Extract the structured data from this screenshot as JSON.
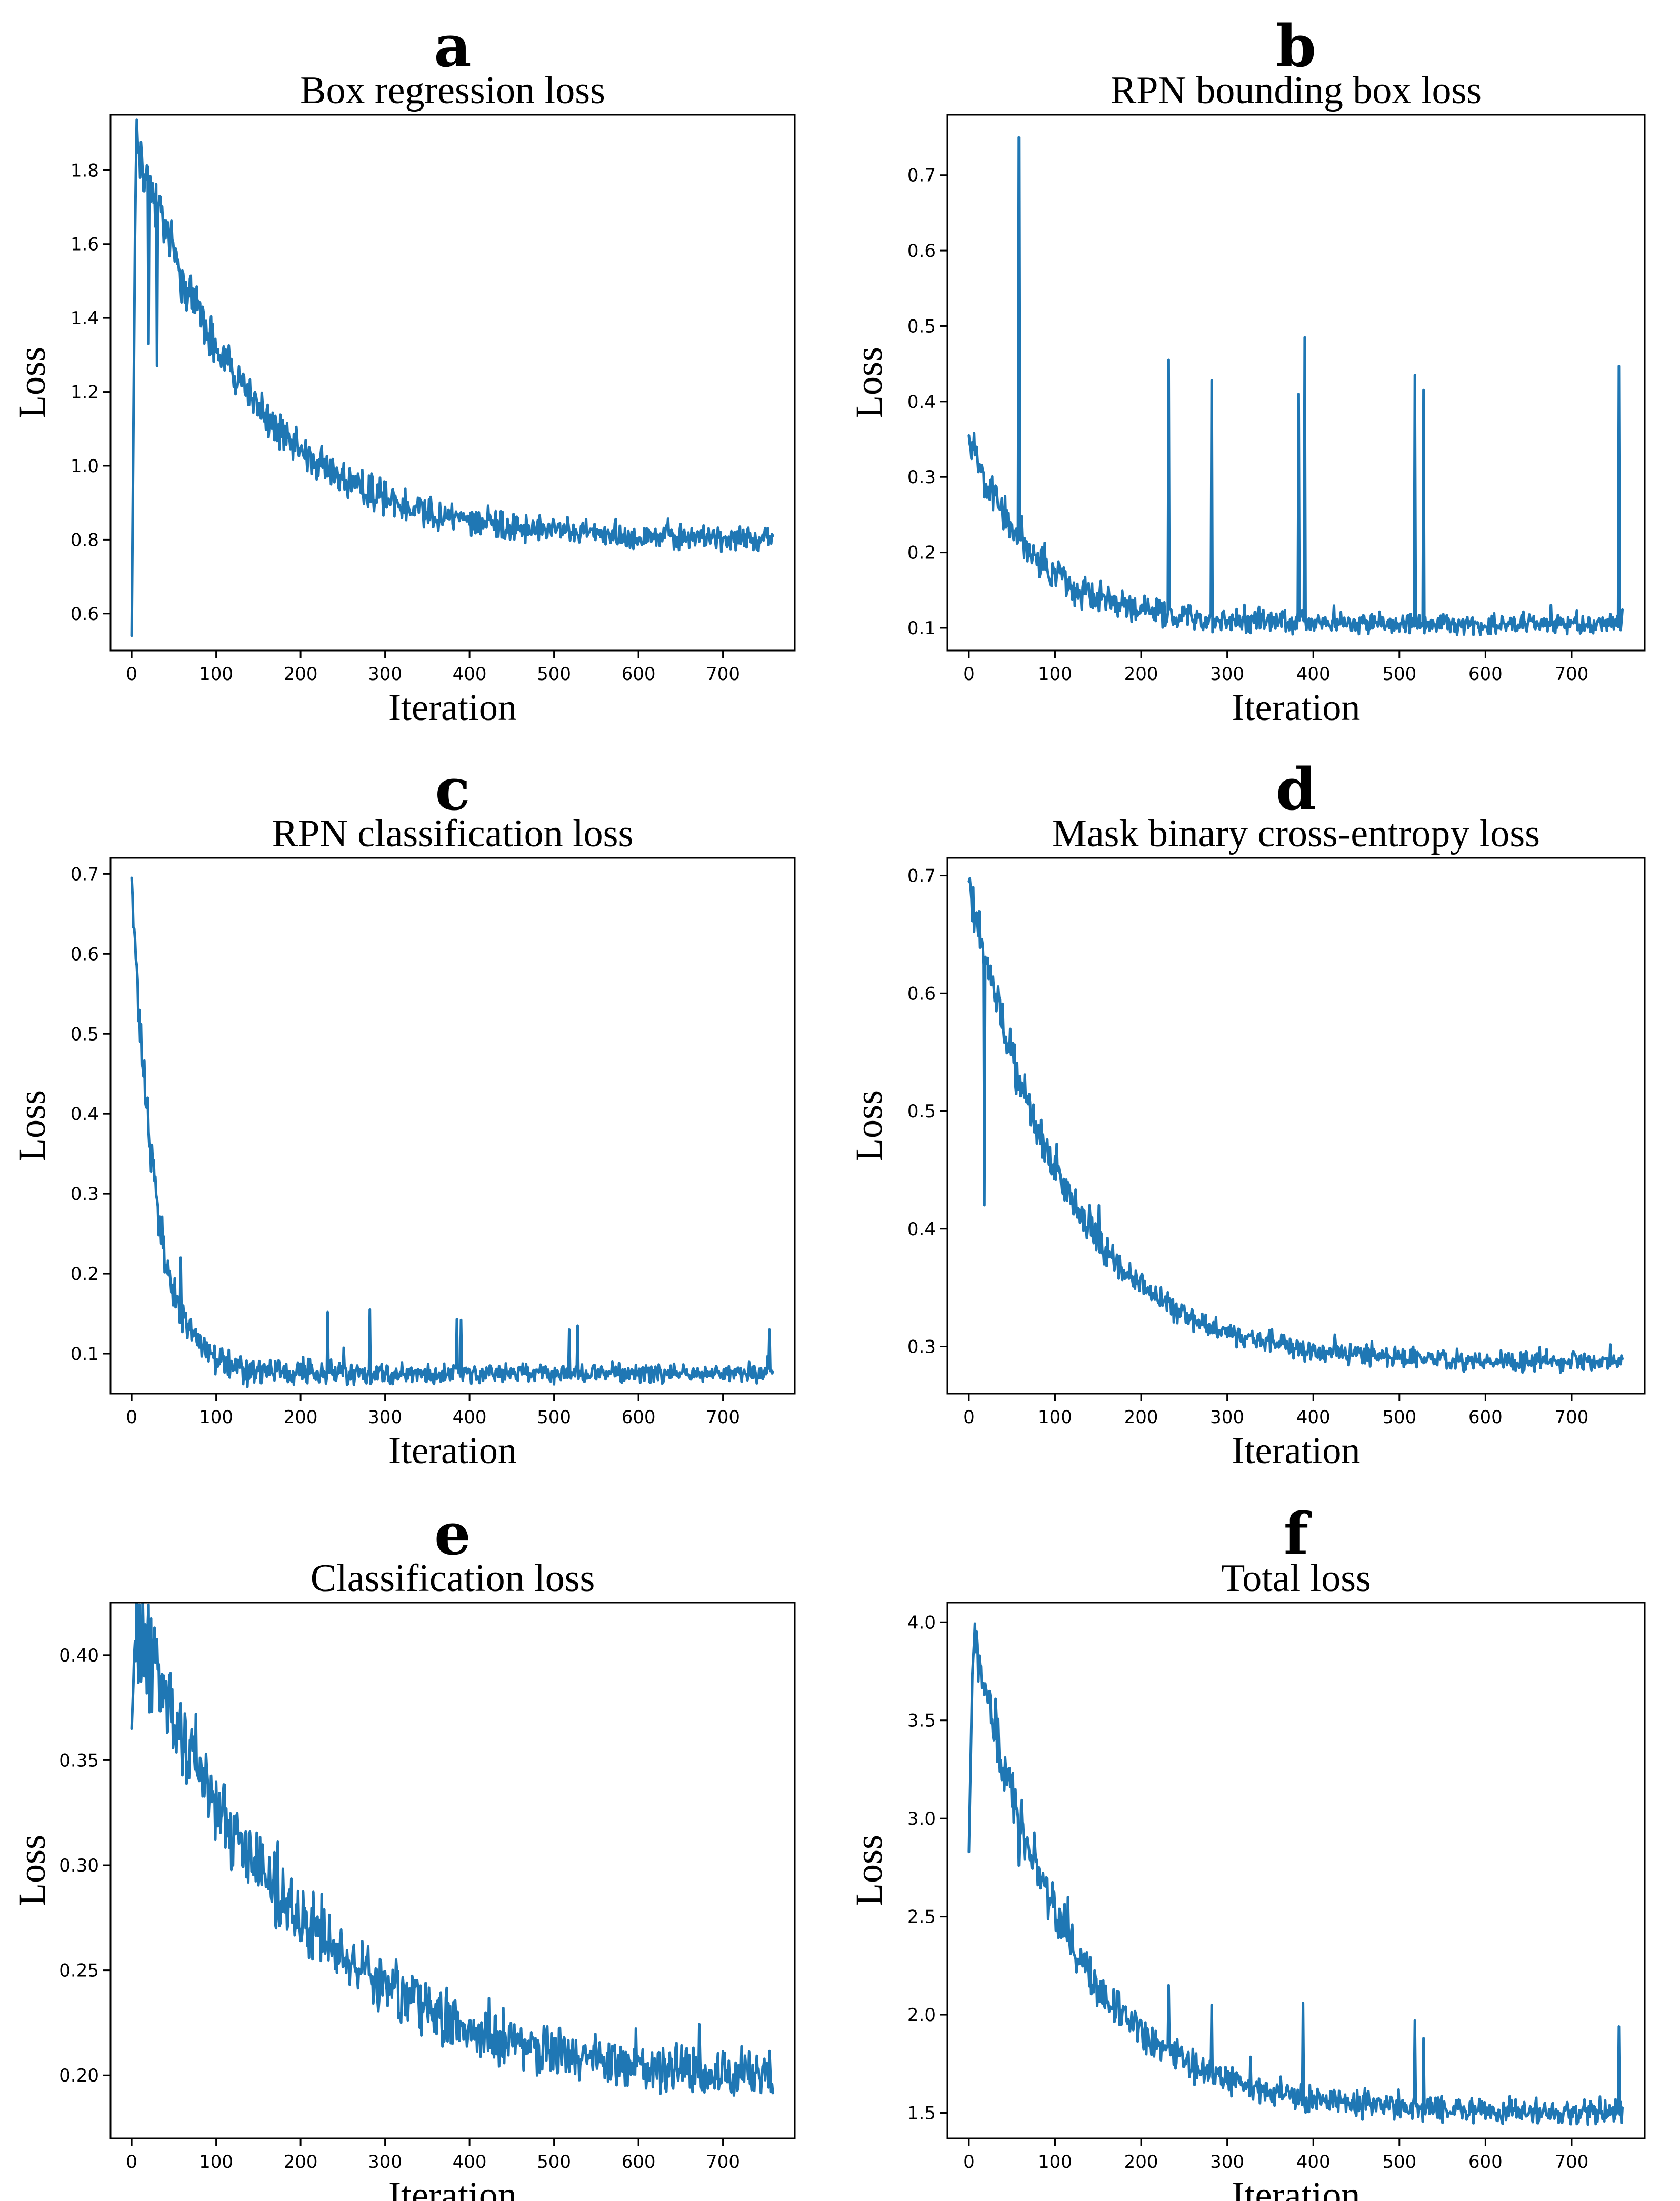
{
  "chart_data": [
    {
      "letter": "a",
      "type": "line",
      "title": "Box regression loss",
      "xlabel": "Iteration",
      "ylabel": "Loss",
      "xticks": [
        0,
        100,
        200,
        300,
        400,
        500,
        600,
        700
      ],
      "yticks": [
        0.6,
        0.8,
        1.0,
        1.2,
        1.4,
        1.6,
        1.8
      ],
      "ytick_labels": [
        "0.6",
        "0.8",
        "1.0",
        "1.2",
        "1.4",
        "1.6",
        "1.8"
      ],
      "xlim": [
        -25,
        785
      ],
      "ylim": [
        0.5,
        1.95
      ],
      "series": [
        {
          "name": "Box regression loss",
          "color": "#1f77b4",
          "start": 0.54,
          "peak_x": 5,
          "peak": 1.89,
          "decay_end": 0.8,
          "tau": 130,
          "noise": 0.025,
          "spikes": [
            [
              10,
              1.78
            ],
            [
              20,
              1.33
            ],
            [
              30,
              1.27
            ],
            [
              365,
              0.9
            ]
          ]
        }
      ]
    },
    {
      "letter": "b",
      "type": "line",
      "title": "RPN bounding box loss",
      "xlabel": "Iteration",
      "ylabel": "Loss",
      "xticks": [
        0,
        100,
        200,
        300,
        400,
        500,
        600,
        700
      ],
      "yticks": [
        0.1,
        0.2,
        0.3,
        0.4,
        0.5,
        0.6,
        0.7
      ],
      "ytick_labels": [
        "0.1",
        "0.2",
        "0.3",
        "0.4",
        "0.5",
        "0.6",
        "0.7"
      ],
      "xlim": [
        -25,
        785
      ],
      "ylim": [
        0.07,
        0.78
      ],
      "series": [
        {
          "name": "RPN bounding box loss",
          "color": "#1f77b4",
          "start": 0.355,
          "peak_x": 0,
          "peak": 0.355,
          "decay_end": 0.105,
          "tau": 75,
          "noise": 0.009,
          "spikes": [
            [
              58,
              0.75
            ],
            [
              232,
              0.455
            ],
            [
              282,
              0.428
            ],
            [
              383,
              0.41
            ],
            [
              390,
              0.485
            ],
            [
              518,
              0.435
            ],
            [
              528,
              0.415
            ],
            [
              755,
              0.447
            ]
          ]
        }
      ]
    },
    {
      "letter": "c",
      "type": "line",
      "title": "RPN classification loss",
      "xlabel": "Iteration",
      "ylabel": "Loss",
      "xticks": [
        0,
        100,
        200,
        300,
        400,
        500,
        600,
        700
      ],
      "yticks": [
        0.1,
        0.2,
        0.3,
        0.4,
        0.5,
        0.6,
        0.7
      ],
      "ytick_labels": [
        "0.1",
        "0.2",
        "0.3",
        "0.4",
        "0.5",
        "0.6",
        "0.7"
      ],
      "xlim": [
        -25,
        785
      ],
      "ylim": [
        0.05,
        0.72
      ],
      "series": [
        {
          "name": "RPN classification loss",
          "color": "#1f77b4",
          "start": 0.695,
          "peak_x": 0,
          "peak": 0.695,
          "decay_end": 0.075,
          "tau": 28,
          "noise": 0.008,
          "spikes": [
            [
              58,
              0.22
            ],
            [
              232,
              0.152
            ],
            [
              282,
              0.155
            ],
            [
              385,
              0.143
            ],
            [
              390,
              0.142
            ],
            [
              518,
              0.13
            ],
            [
              528,
              0.135
            ],
            [
              755,
              0.13
            ]
          ]
        }
      ]
    },
    {
      "letter": "d",
      "type": "line",
      "title": "Mask binary cross-entropy loss",
      "xlabel": "Iteration",
      "ylabel": "Loss",
      "xticks": [
        0,
        100,
        200,
        300,
        400,
        500,
        600,
        700
      ],
      "yticks": [
        0.3,
        0.4,
        0.5,
        0.6,
        0.7
      ],
      "ytick_labels": [
        "0.3",
        "0.4",
        "0.5",
        "0.6",
        "0.7"
      ],
      "xlim": [
        -25,
        785
      ],
      "ylim": [
        0.26,
        0.715
      ],
      "series": [
        {
          "name": "Mask binary cross-entropy loss",
          "color": "#1f77b4",
          "start": 0.695,
          "peak_x": 0,
          "peak": 0.695,
          "decay_end": 0.286,
          "tau": 110,
          "noise": 0.006,
          "spikes": [
            [
              18,
              0.42
            ],
            [
              5,
              0.69
            ]
          ]
        }
      ]
    },
    {
      "letter": "e",
      "type": "line",
      "title": "Classification loss",
      "xlabel": "Iteration",
      "ylabel": "Loss",
      "xticks": [
        0,
        100,
        200,
        300,
        400,
        500,
        600,
        700
      ],
      "yticks": [
        0.2,
        0.25,
        0.3,
        0.35,
        0.4
      ],
      "ytick_labels": [
        "0.20",
        "0.25",
        "0.30",
        "0.35",
        "0.40"
      ],
      "xlim": [
        -25,
        785
      ],
      "ylim": [
        0.17,
        0.425
      ],
      "series": [
        {
          "name": "Classification loss",
          "color": "#1f77b4",
          "start": 0.365,
          "peak_x": 5,
          "peak": 0.417,
          "decay_end": 0.195,
          "tau": 190,
          "noise": 0.008,
          "spikes": [
            [
              3,
              0.4
            ],
            [
              440,
              0.232
            ]
          ]
        }
      ]
    },
    {
      "letter": "f",
      "type": "line",
      "title": "Total loss",
      "xlabel": "Iteration",
      "ylabel": "Loss",
      "xticks": [
        0,
        100,
        200,
        300,
        400,
        500,
        600,
        700
      ],
      "yticks": [
        1.5,
        2.0,
        2.5,
        3.0,
        3.5,
        4.0
      ],
      "ytick_labels": [
        "1.5",
        "2.0",
        "2.5",
        "3.0",
        "3.5",
        "4.0"
      ],
      "xlim": [
        -25,
        785
      ],
      "ylim": [
        1.37,
        4.1
      ],
      "series": [
        {
          "name": "Total loss",
          "color": "#1f77b4",
          "start": 2.83,
          "peak_x": 5,
          "peak": 3.96,
          "decay_end": 1.5,
          "tau": 110,
          "noise": 0.045,
          "spikes": [
            [
              58,
              2.76
            ],
            [
              232,
              2.15
            ],
            [
              282,
              2.05
            ],
            [
              388,
              2.06
            ],
            [
              518,
              1.97
            ],
            [
              528,
              1.88
            ],
            [
              755,
              1.94
            ]
          ]
        }
      ]
    }
  ]
}
